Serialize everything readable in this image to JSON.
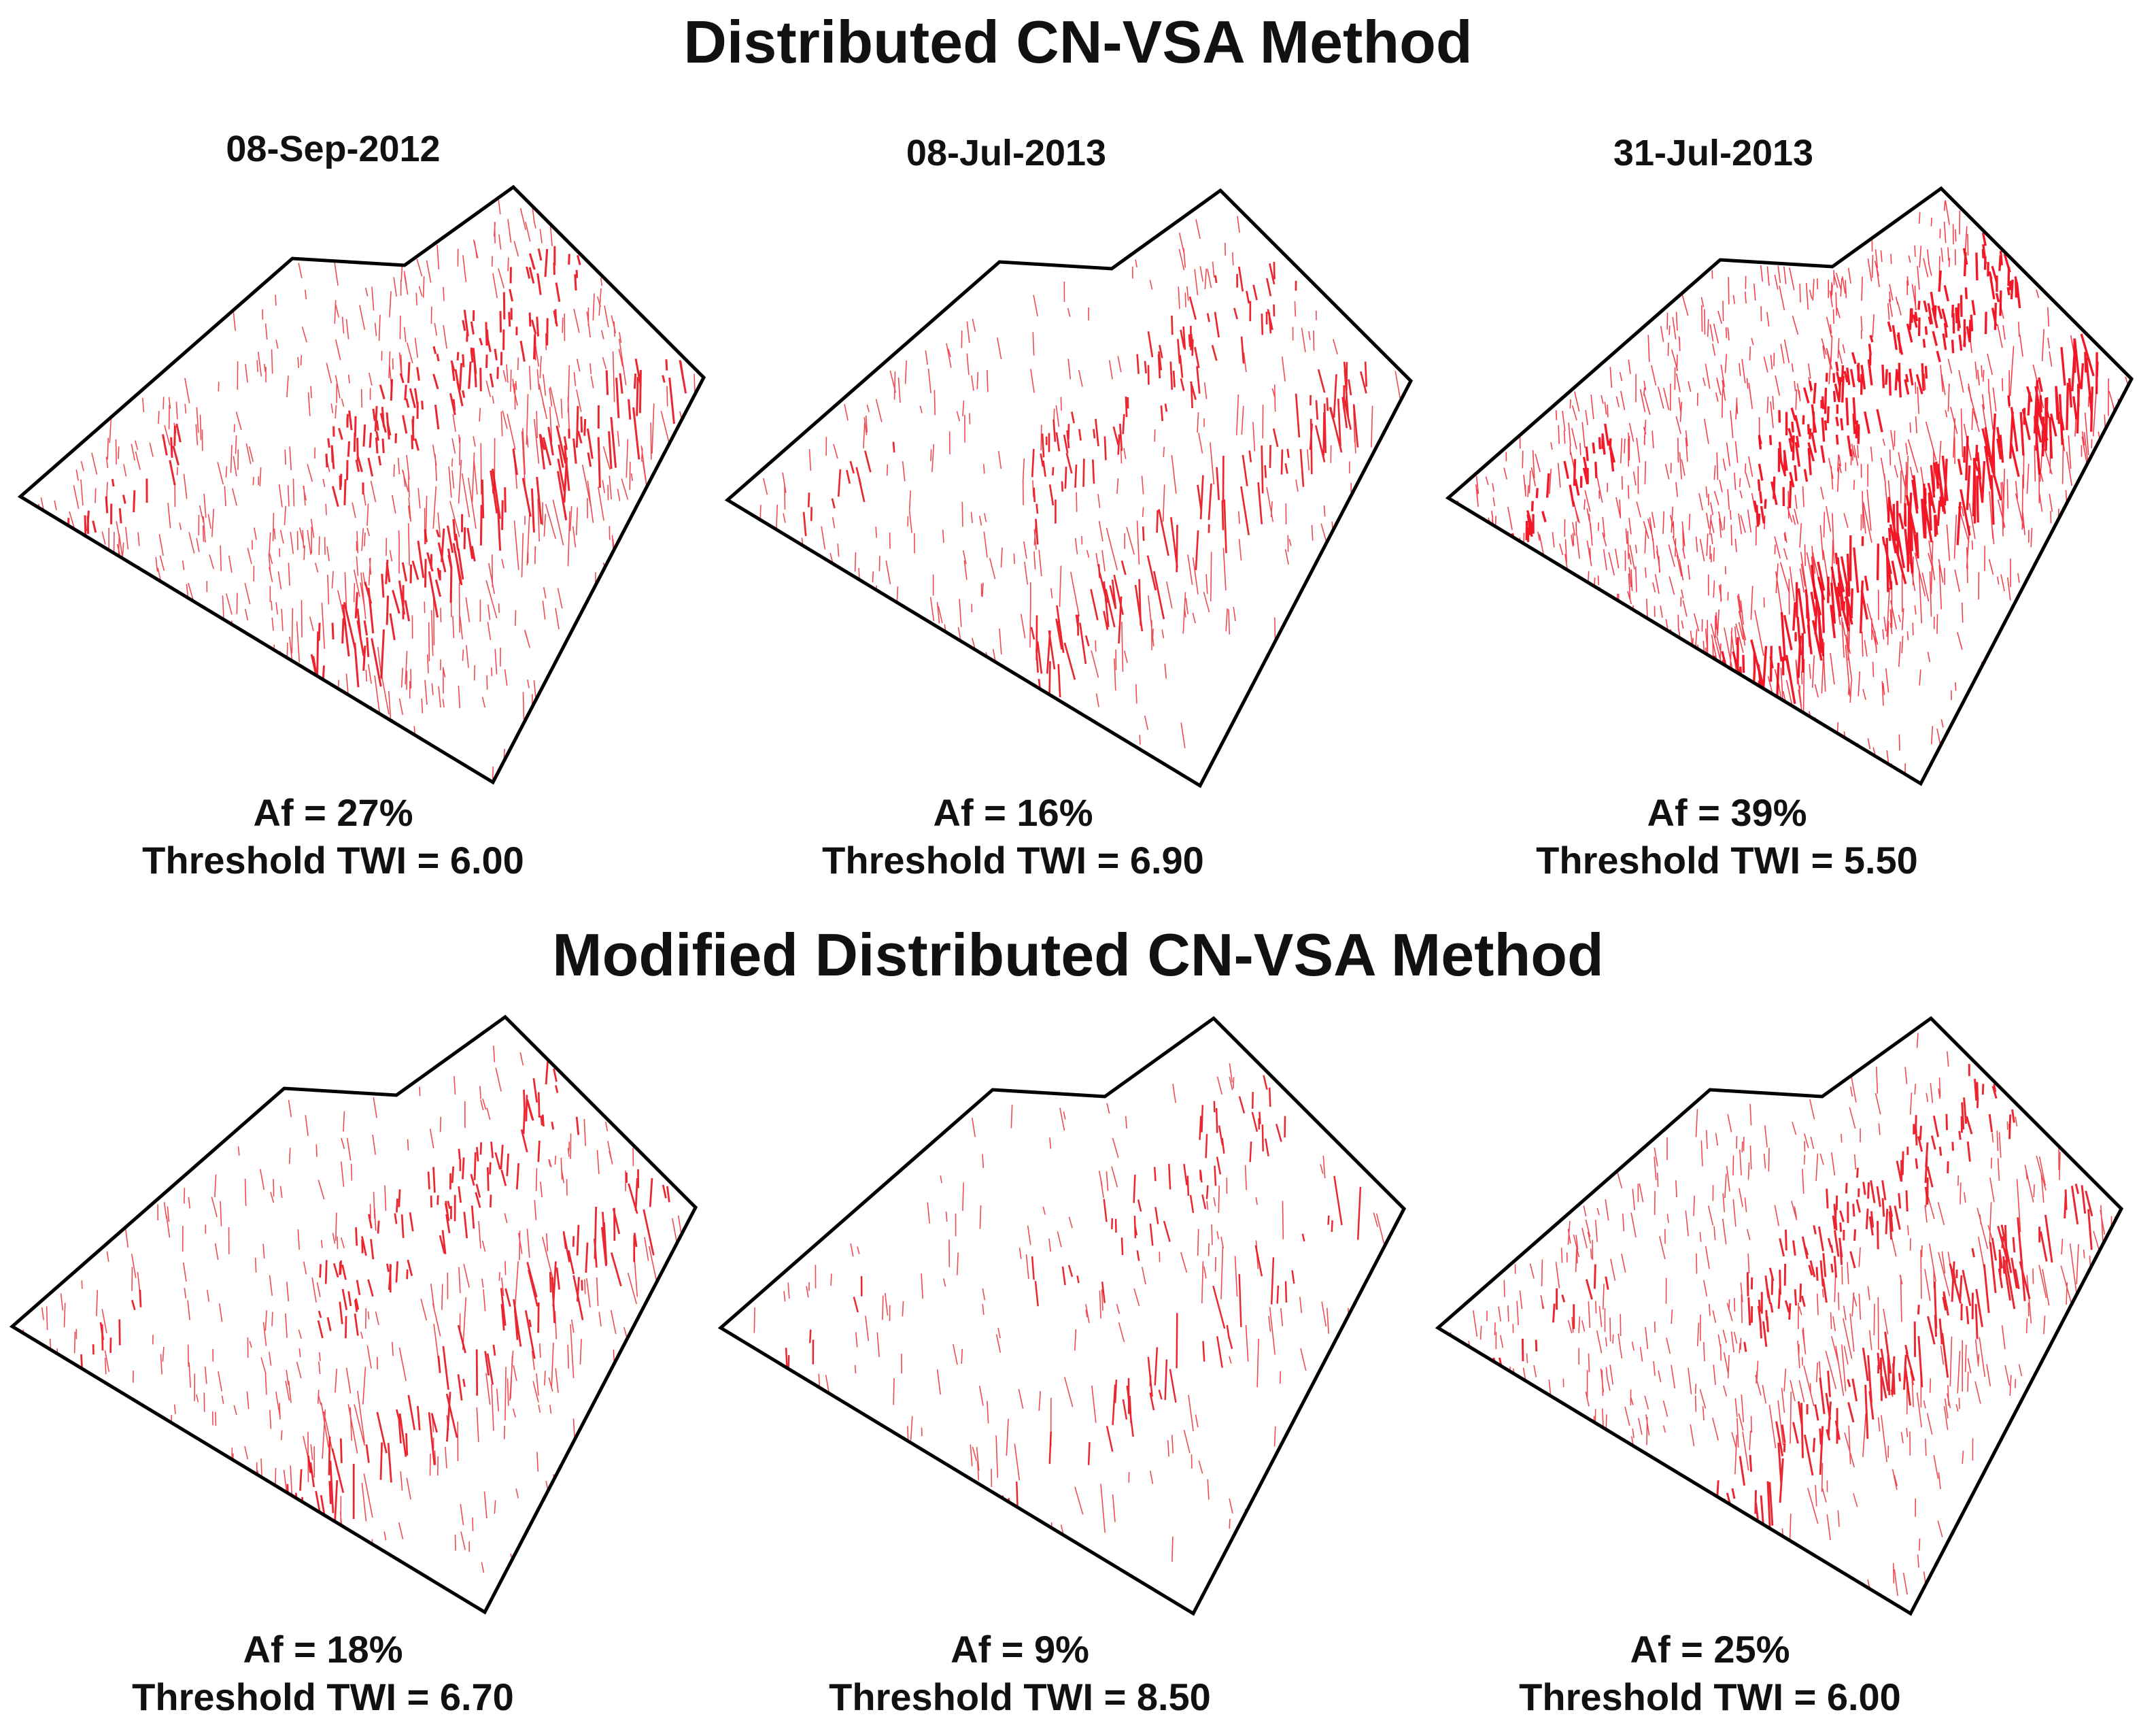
{
  "sections": [
    {
      "title": "Distributed CN-VSA Method",
      "panels": [
        {
          "date": "08-Sep-2012",
          "af_value": 27,
          "af_text": "Af = 27%",
          "threshold_text": "Threshold TWI = 6.00",
          "color": "#e8101a"
        },
        {
          "date": "08-Jul-2013",
          "af_value": 16,
          "af_text": "Af = 16%",
          "threshold_text": "Threshold TWI = 6.90",
          "color": "#e8101a"
        },
        {
          "date": "31-Jul-2013",
          "af_value": 39,
          "af_text": "Af = 39%",
          "threshold_text": "Threshold TWI = 5.50",
          "color": "#f00010"
        }
      ]
    },
    {
      "title": "Modified Distributed CN-VSA Method",
      "panels": [
        {
          "af_value": 18,
          "af_text": "Af = 18%",
          "threshold_text": "Threshold TWI = 6.70",
          "color": "#e8101a"
        },
        {
          "af_value": 9,
          "af_text": "Af = 9%",
          "threshold_text": "Threshold TWI = 8.50",
          "color": "#e8101a"
        },
        {
          "af_value": 25,
          "af_text": "Af = 25%",
          "threshold_text": "Threshold TWI = 6.00",
          "color": "#e8101a"
        }
      ]
    }
  ]
}
